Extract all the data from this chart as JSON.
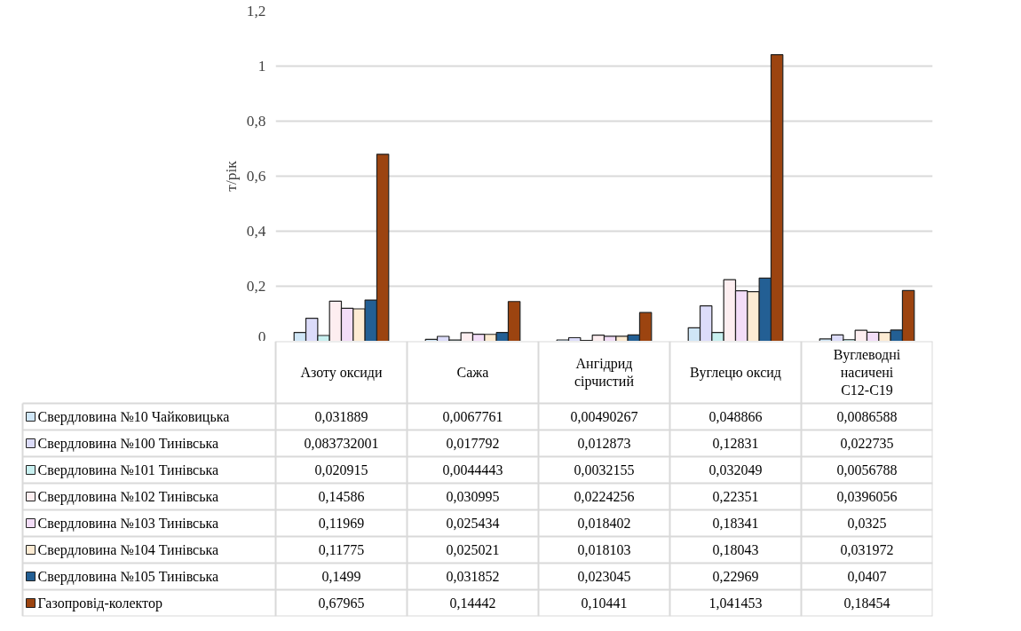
{
  "chart_data": {
    "type": "bar",
    "ylabel": "т/рік",
    "categories": [
      "Азоту оксиди",
      "Сажа",
      "Ангідрид сірчистий",
      "Вуглецю оксид",
      "Вуглеводні насичені С12-С19"
    ],
    "ylim": [
      0,
      1.2
    ],
    "yticks": [
      0,
      {
        "value": 0.2,
        "label": "0,2"
      },
      {
        "value": 0.4,
        "label": "0,4"
      },
      {
        "value": 0.6,
        "label": "0,6"
      },
      {
        "value": 0.8,
        "label": "0,8"
      },
      1,
      {
        "value": 1.2,
        "label": "1,2"
      }
    ],
    "grid": "y",
    "legend": "bottom",
    "series": [
      {
        "name": "Свердловина №10 Чайковицька",
        "color": "#cfe6f7",
        "values": [
          0.031889,
          0.0067761,
          0.00490267,
          0.048866,
          0.0086588
        ],
        "value_labels": [
          "0,031889",
          "0,0067761",
          "0,00490267",
          "0,048866",
          "0,0086588"
        ]
      },
      {
        "name": "Свердловина №100 Тинівська",
        "color": "#dcdcfa",
        "values": [
          0.083732001,
          0.017792,
          0.012873,
          0.12831,
          0.022735
        ],
        "value_labels": [
          "0,083732001",
          "0,017792",
          "0,012873",
          "0,12831",
          "0,022735"
        ]
      },
      {
        "name": "Свердловина №101 Тинівська",
        "color": "#c8f0f0",
        "values": [
          0.020915,
          0.0044443,
          0.0032155,
          0.032049,
          0.0056788
        ],
        "value_labels": [
          "0,020915",
          "0,0044443",
          "0,0032155",
          "0,032049",
          "0,0056788"
        ]
      },
      {
        "name": "Свердловина №102 Тинівська",
        "color": "#fdeef0",
        "values": [
          0.14586,
          0.030995,
          0.0224256,
          0.22351,
          0.0396056
        ],
        "value_labels": [
          "0,14586",
          "0,030995",
          "0,0224256",
          "0,22351",
          "0,0396056"
        ]
      },
      {
        "name": "Свердловина №103 Тинівська",
        "color": "#f3ddf8",
        "values": [
          0.11969,
          0.025434,
          0.018402,
          0.18341,
          0.0325
        ],
        "value_labels": [
          "0,11969",
          "0,025434",
          "0,018402",
          "0,18341",
          "0,0325"
        ]
      },
      {
        "name": "Свердловина №104 Тинівська",
        "color": "#fdebd3",
        "values": [
          0.11775,
          0.025021,
          0.018103,
          0.18043,
          0.031972
        ],
        "value_labels": [
          "0,11775",
          "0,025021",
          "0,018103",
          "0,18043",
          "0,031972"
        ]
      },
      {
        "name": "Свердловина №105 Тинівська",
        "color": "#235f94",
        "values": [
          0.1499,
          0.031852,
          0.023045,
          0.22969,
          0.0407
        ],
        "value_labels": [
          "0,1499",
          "0,031852",
          "0,023045",
          "0,22969",
          "0,0407"
        ]
      },
      {
        "name": "Газопровід-колектор",
        "color": "#9c4410",
        "values": [
          0.67965,
          0.14442,
          0.10441,
          1.041453,
          0.18454
        ],
        "value_labels": [
          "0,67965",
          "0,14442",
          "0,10441",
          "1,041453",
          "0,18454"
        ]
      }
    ]
  }
}
